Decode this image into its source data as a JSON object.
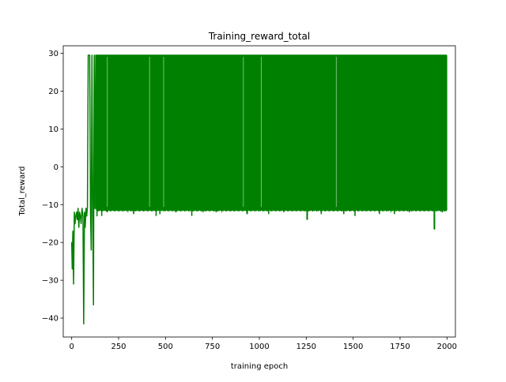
{
  "chart_data": {
    "type": "line",
    "title": "Training_reward_total",
    "xlabel": "training epoch",
    "ylabel": "Total_reward",
    "xlim": [
      -45,
      2045
    ],
    "ylim": [
      -45,
      32
    ],
    "xticks": [
      0,
      250,
      500,
      750,
      1000,
      1250,
      1500,
      1750,
      2000
    ],
    "xtick_labels": [
      "0",
      "250",
      "500",
      "750",
      "1000",
      "1250",
      "1500",
      "1750",
      "2000"
    ],
    "yticks": [
      -40,
      -30,
      -20,
      -10,
      0,
      10,
      20,
      30
    ],
    "ytick_labels": [
      "−40",
      "−30",
      "−20",
      "−10",
      "0",
      "10",
      "20",
      "30"
    ],
    "grid": false,
    "legend": "none",
    "series": [
      {
        "color": "#008000",
        "x": [
          0,
          3,
          6,
          10,
          14,
          18,
          22,
          26,
          30,
          34,
          38,
          42,
          46,
          50,
          55,
          60,
          64,
          68,
          72,
          76,
          80,
          84,
          88,
          92,
          96,
          100,
          104,
          108,
          112,
          116,
          120,
          124,
          128,
          135,
          145,
          160,
          200,
          300,
          420,
          500,
          650,
          800,
          920,
          1010,
          1200,
          1410,
          1550,
          1700,
          1800,
          1933,
          1980,
          1999
        ],
        "y": [
          -20,
          -27,
          -17,
          -31,
          -12,
          -15,
          -13,
          -12,
          -14,
          -11,
          -16,
          -12,
          -13,
          -15,
          -11,
          -13,
          -41.5,
          -12,
          -16,
          -11,
          -13,
          -10.5,
          29.5,
          29.5,
          29.5,
          -11,
          -22,
          29.5,
          -11,
          -36.5,
          29.5,
          -11,
          29.5,
          -13,
          29.5,
          -12,
          29.5,
          -12,
          29.5,
          -11,
          29.5,
          -12,
          29.5,
          -11,
          29.5,
          -11,
          29.5,
          -12,
          29.5,
          -16.5,
          29.5,
          -11
        ]
      }
    ],
    "density": {
      "x_start": 130,
      "x_end": 1999,
      "upper": 29.5,
      "lower": -11,
      "lower_dips": [
        {
          "x": 160,
          "y": -13
        },
        {
          "x": 190,
          "y": -12
        },
        {
          "x": 330,
          "y": -12.5
        },
        {
          "x": 450,
          "y": -13
        },
        {
          "x": 470,
          "y": -12.5
        },
        {
          "x": 555,
          "y": -12
        },
        {
          "x": 640,
          "y": -13
        },
        {
          "x": 700,
          "y": -12
        },
        {
          "x": 770,
          "y": -12
        },
        {
          "x": 935,
          "y": -12.5
        },
        {
          "x": 1050,
          "y": -12.5
        },
        {
          "x": 1130,
          "y": -12
        },
        {
          "x": 1255,
          "y": -14
        },
        {
          "x": 1330,
          "y": -12.5
        },
        {
          "x": 1450,
          "y": -12.5
        },
        {
          "x": 1510,
          "y": -13
        },
        {
          "x": 1640,
          "y": -12.5
        },
        {
          "x": 1720,
          "y": -12.5
        },
        {
          "x": 1800,
          "y": -12
        },
        {
          "x": 1933,
          "y": -16.5
        },
        {
          "x": 1975,
          "y": -12
        }
      ],
      "gaps": [
        190,
        415,
        490,
        915,
        1010,
        1410
      ]
    }
  }
}
